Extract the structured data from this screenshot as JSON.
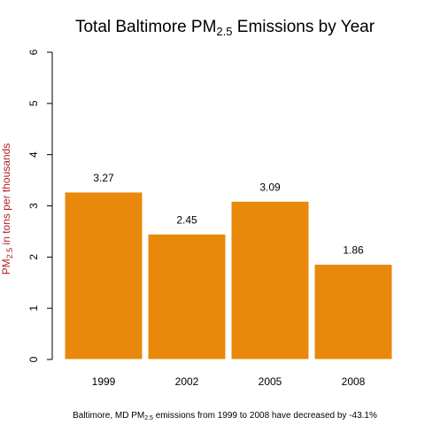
{
  "chart_data": {
    "type": "bar",
    "title": {
      "pre": "Total Baltimore PM",
      "sub": "2.5",
      "post": " Emissions by Year"
    },
    "ylabel": {
      "pre": "PM",
      "sub": "2.5",
      "post": " in tons per thousands"
    },
    "xlabel": "",
    "categories": [
      "1999",
      "2002",
      "2005",
      "2008"
    ],
    "values": [
      3.27,
      2.45,
      3.09,
      1.86
    ],
    "data_labels": [
      "3.27",
      "2.45",
      "3.09",
      "1.86"
    ],
    "ylim": [
      0,
      6
    ],
    "yticks": [
      "0",
      "1",
      "2",
      "3",
      "4",
      "5",
      "6"
    ],
    "bar_color": "#e8890c",
    "ylabel_color": "#b22222",
    "grid": false,
    "legend": "none",
    "caption": {
      "pre": "Baltimore, MD PM",
      "sub": "2.5",
      "post": " emissions from 1999 to 2008 have decreased by -43.1%"
    }
  }
}
